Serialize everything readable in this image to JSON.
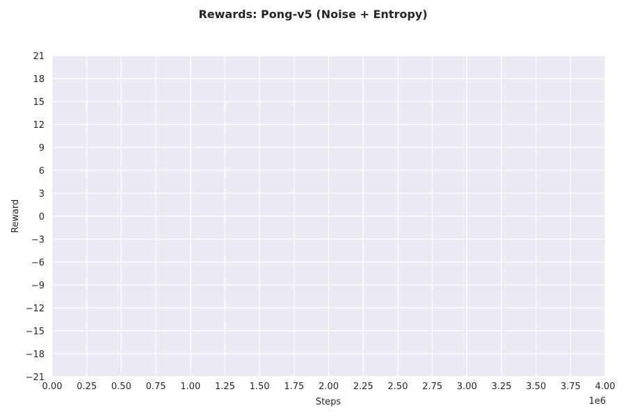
{
  "chart_data": {
    "type": "line",
    "title": "Rewards: Pong-v5 (Noise + Entropy)",
    "xlabel": "Steps",
    "ylabel": "Reward",
    "x_offset_label": "1e6",
    "xlim": [
      0,
      4000000
    ],
    "ylim": [
      -21,
      21
    ],
    "x_ticks": [
      0,
      250000,
      500000,
      750000,
      1000000,
      1250000,
      1500000,
      1750000,
      2000000,
      2250000,
      2500000,
      2750000,
      3000000,
      3250000,
      3500000,
      3750000,
      4000000
    ],
    "x_tick_labels": [
      "0.00",
      "0.25",
      "0.50",
      "0.75",
      "1.00",
      "1.25",
      "1.50",
      "1.75",
      "2.00",
      "2.25",
      "2.50",
      "2.75",
      "3.00",
      "3.25",
      "3.50",
      "3.75",
      "4.00"
    ],
    "y_ticks": [
      21,
      18,
      15,
      12,
      9,
      6,
      3,
      0,
      -3,
      -6,
      -9,
      -12,
      -15,
      -18,
      -21
    ],
    "y_tick_labels": [
      "21",
      "18",
      "15",
      "12",
      "9",
      "6",
      "3",
      "0",
      "−3",
      "−6",
      "−9",
      "−12",
      "−15",
      "−18",
      "−21"
    ],
    "grid": true,
    "series": [],
    "colors": {
      "plot_background": "#eaeaf2",
      "grid": "#ffffff",
      "text": "#262626"
    }
  }
}
